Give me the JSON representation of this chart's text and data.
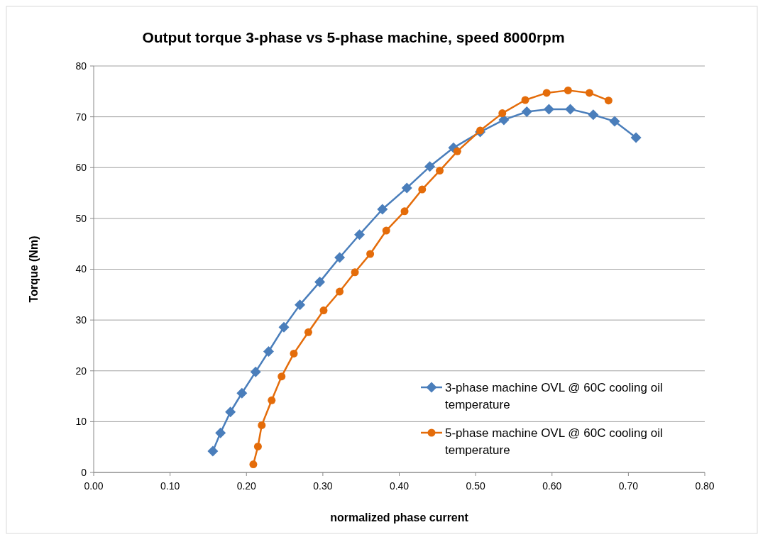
{
  "chart_data": {
    "type": "line",
    "title": "Output torque 3-phase vs 5-phase machine, speed 8000rpm",
    "xlabel": "normalized phase current",
    "ylabel": "Torque (Nm)",
    "xlim": [
      0,
      0.8
    ],
    "xticks": [
      {
        "value": 0,
        "label": "0.00"
      },
      {
        "value": 0.1,
        "label": "0.10"
      },
      {
        "value": 0.2,
        "label": "0.20"
      },
      {
        "value": 0.3,
        "label": "0.30"
      },
      {
        "value": 0.4,
        "label": "0.40"
      },
      {
        "value": 0.5,
        "label": "0.50"
      },
      {
        "value": 0.6,
        "label": "0.60"
      },
      {
        "value": 0.7,
        "label": "0.70"
      },
      {
        "value": 0.8,
        "label": "0.80"
      }
    ],
    "ylim": [
      0,
      80
    ],
    "yticks": [
      0,
      10,
      20,
      30,
      40,
      50,
      60,
      70,
      80
    ],
    "grid": "y",
    "legend": "bottom right",
    "series": [
      {
        "name": "3-phase machine OVL @ 60C cooling oil temperature",
        "color": "#4a7ebb",
        "marker": "diamond",
        "x": [
          0.156,
          0.166,
          0.179,
          0.194,
          0.212,
          0.229,
          0.249,
          0.27,
          0.296,
          0.322,
          0.348,
          0.378,
          0.41,
          0.44,
          0.471,
          0.506,
          0.537,
          0.567,
          0.596,
          0.624,
          0.654,
          0.682,
          0.71
        ],
        "values": [
          4.2,
          7.8,
          11.9,
          15.6,
          19.8,
          23.8,
          28.6,
          33.0,
          37.5,
          42.3,
          46.8,
          51.8,
          56.0,
          60.2,
          63.9,
          67.0,
          69.4,
          71.0,
          71.5,
          71.5,
          70.4,
          69.1,
          65.9
        ]
      },
      {
        "name": "5-phase machine OVL @ 60C cooling oil temperature",
        "color": "#e46c0a",
        "marker": "circle",
        "x": [
          0.209,
          0.215,
          0.22,
          0.233,
          0.246,
          0.262,
          0.281,
          0.301,
          0.322,
          0.342,
          0.362,
          0.383,
          0.407,
          0.43,
          0.453,
          0.476,
          0.506,
          0.535,
          0.565,
          0.593,
          0.621,
          0.649,
          0.674
        ],
        "values": [
          1.6,
          5.1,
          9.3,
          14.2,
          18.9,
          23.4,
          27.6,
          31.9,
          35.6,
          39.4,
          43.0,
          47.6,
          51.4,
          55.7,
          59.4,
          63.2,
          67.3,
          70.7,
          73.3,
          74.7,
          75.2,
          74.7,
          73.2
        ]
      }
    ]
  }
}
